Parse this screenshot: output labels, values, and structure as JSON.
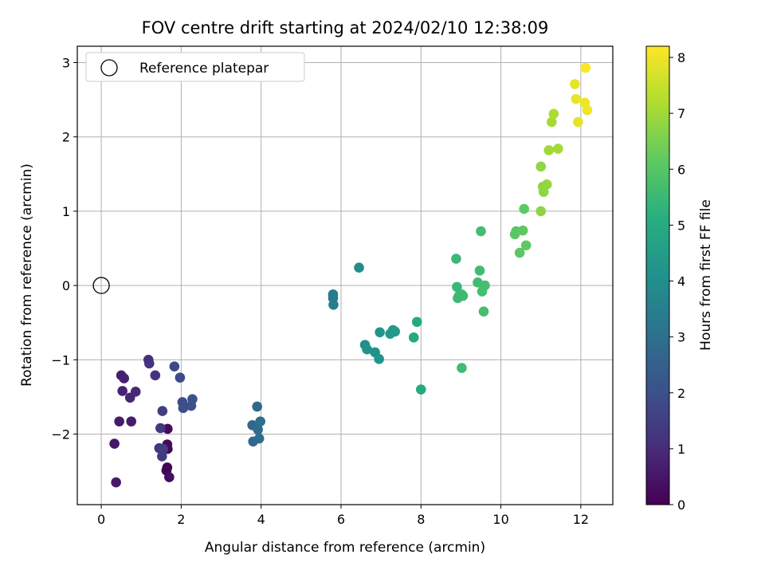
{
  "chart_data": {
    "type": "scatter",
    "title": "FOV centre drift starting at 2024/02/10 12:38:09",
    "xlabel": "Angular distance from reference (arcmin)",
    "ylabel": "Rotation from reference (arcmin)",
    "xlim": [
      -0.6,
      12.8
    ],
    "ylim": [
      -2.95,
      3.22
    ],
    "xticks": [
      0,
      2,
      4,
      6,
      8,
      10,
      12
    ],
    "yticks": [
      -2,
      -1,
      0,
      1,
      2,
      3
    ],
    "grid": true,
    "legend": {
      "placement": "top-left",
      "entries": [
        "Reference platepar"
      ]
    },
    "reference_point": {
      "x": 0,
      "y": 0
    },
    "colorbar": {
      "label": "Hours from first FF file",
      "range": [
        0,
        8.2
      ],
      "ticks": [
        0,
        1,
        2,
        3,
        4,
        5,
        6,
        7,
        8
      ],
      "colormap": "viridis"
    },
    "points": [
      {
        "x": 1.65,
        "y": -2.45,
        "c": 0.05
      },
      {
        "x": 1.63,
        "y": -2.49,
        "c": 0.1
      },
      {
        "x": 1.66,
        "y": -2.2,
        "c": 0.15
      },
      {
        "x": 1.65,
        "y": -2.14,
        "c": 0.2
      },
      {
        "x": 1.66,
        "y": -1.93,
        "c": 0.25
      },
      {
        "x": 1.7,
        "y": -2.58,
        "c": 0.3
      },
      {
        "x": 0.33,
        "y": -2.13,
        "c": 0.5
      },
      {
        "x": 0.37,
        "y": -2.65,
        "c": 0.55
      },
      {
        "x": 0.45,
        "y": -1.83,
        "c": 0.6
      },
      {
        "x": 0.75,
        "y": -1.83,
        "c": 0.65
      },
      {
        "x": 0.5,
        "y": -1.21,
        "c": 0.7
      },
      {
        "x": 0.57,
        "y": -1.25,
        "c": 0.75
      },
      {
        "x": 0.53,
        "y": -1.42,
        "c": 0.8
      },
      {
        "x": 0.72,
        "y": -1.51,
        "c": 0.85
      },
      {
        "x": 0.86,
        "y": -1.43,
        "c": 0.9
      },
      {
        "x": 1.18,
        "y": -1.0,
        "c": 1.1
      },
      {
        "x": 1.2,
        "y": -1.05,
        "c": 1.15
      },
      {
        "x": 1.35,
        "y": -1.21,
        "c": 1.2
      },
      {
        "x": 1.45,
        "y": -2.19,
        "c": 1.3
      },
      {
        "x": 1.48,
        "y": -1.92,
        "c": 1.35
      },
      {
        "x": 1.52,
        "y": -2.3,
        "c": 1.4
      },
      {
        "x": 1.55,
        "y": -2.2,
        "c": 1.45
      },
      {
        "x": 1.53,
        "y": -1.69,
        "c": 1.5
      },
      {
        "x": 1.83,
        "y": -1.09,
        "c": 1.8
      },
      {
        "x": 1.97,
        "y": -1.24,
        "c": 1.85
      },
      {
        "x": 2.03,
        "y": -1.57,
        "c": 1.95
      },
      {
        "x": 2.05,
        "y": -1.65,
        "c": 2.0
      },
      {
        "x": 2.25,
        "y": -1.62,
        "c": 2.05
      },
      {
        "x": 2.28,
        "y": -1.53,
        "c": 2.1
      },
      {
        "x": 3.78,
        "y": -1.88,
        "c": 2.7
      },
      {
        "x": 3.8,
        "y": -2.1,
        "c": 2.75
      },
      {
        "x": 3.9,
        "y": -1.63,
        "c": 2.8
      },
      {
        "x": 3.92,
        "y": -1.94,
        "c": 2.85
      },
      {
        "x": 3.95,
        "y": -2.06,
        "c": 2.9
      },
      {
        "x": 3.98,
        "y": -1.83,
        "c": 2.95
      },
      {
        "x": 5.8,
        "y": -0.12,
        "c": 3.4
      },
      {
        "x": 5.8,
        "y": -0.17,
        "c": 3.45
      },
      {
        "x": 5.81,
        "y": -0.26,
        "c": 3.5
      },
      {
        "x": 6.45,
        "y": 0.24,
        "c": 4.0
      },
      {
        "x": 6.6,
        "y": -0.8,
        "c": 4.05
      },
      {
        "x": 6.65,
        "y": -0.86,
        "c": 4.1
      },
      {
        "x": 6.85,
        "y": -0.9,
        "c": 4.15
      },
      {
        "x": 6.95,
        "y": -0.99,
        "c": 4.2
      },
      {
        "x": 6.97,
        "y": -0.63,
        "c": 4.25
      },
      {
        "x": 7.23,
        "y": -0.65,
        "c": 4.3
      },
      {
        "x": 7.3,
        "y": -0.6,
        "c": 4.35
      },
      {
        "x": 7.35,
        "y": -0.62,
        "c": 4.4
      },
      {
        "x": 7.82,
        "y": -0.7,
        "c": 4.9
      },
      {
        "x": 7.9,
        "y": -0.49,
        "c": 4.95
      },
      {
        "x": 8.0,
        "y": -1.4,
        "c": 5.0
      },
      {
        "x": 8.88,
        "y": 0.36,
        "c": 5.5
      },
      {
        "x": 8.9,
        "y": -0.02,
        "c": 5.45
      },
      {
        "x": 8.95,
        "y": -0.14,
        "c": 5.55
      },
      {
        "x": 8.92,
        "y": -0.17,
        "c": 5.5
      },
      {
        "x": 9.02,
        "y": -0.12,
        "c": 5.55
      },
      {
        "x": 9.05,
        "y": -0.14,
        "c": 5.55
      },
      {
        "x": 9.02,
        "y": -1.11,
        "c": 5.6
      },
      {
        "x": 9.42,
        "y": 0.04,
        "c": 5.6
      },
      {
        "x": 9.47,
        "y": 0.2,
        "c": 5.6
      },
      {
        "x": 9.5,
        "y": 0.73,
        "c": 5.65
      },
      {
        "x": 9.53,
        "y": -0.08,
        "c": 5.65
      },
      {
        "x": 9.57,
        "y": -0.35,
        "c": 5.7
      },
      {
        "x": 9.6,
        "y": 0.0,
        "c": 5.7
      },
      {
        "x": 10.35,
        "y": 0.69,
        "c": 6.05
      },
      {
        "x": 10.38,
        "y": 0.73,
        "c": 6.05
      },
      {
        "x": 10.47,
        "y": 0.44,
        "c": 6.1
      },
      {
        "x": 10.55,
        "y": 0.74,
        "c": 6.1
      },
      {
        "x": 10.58,
        "y": 1.03,
        "c": 6.15
      },
      {
        "x": 10.63,
        "y": 0.54,
        "c": 6.15
      },
      {
        "x": 11.0,
        "y": 1.0,
        "c": 6.75
      },
      {
        "x": 11.0,
        "y": 1.6,
        "c": 6.8
      },
      {
        "x": 11.05,
        "y": 1.33,
        "c": 6.8
      },
      {
        "x": 11.07,
        "y": 1.26,
        "c": 6.8
      },
      {
        "x": 11.15,
        "y": 1.36,
        "c": 6.85
      },
      {
        "x": 11.2,
        "y": 1.82,
        "c": 7.0
      },
      {
        "x": 11.43,
        "y": 1.84,
        "c": 7.05
      },
      {
        "x": 11.27,
        "y": 2.2,
        "c": 7.1
      },
      {
        "x": 11.32,
        "y": 2.31,
        "c": 7.15
      },
      {
        "x": 11.85,
        "y": 2.71,
        "c": 7.9
      },
      {
        "x": 11.88,
        "y": 2.51,
        "c": 7.95
      },
      {
        "x": 11.93,
        "y": 2.2,
        "c": 7.9
      },
      {
        "x": 12.1,
        "y": 2.46,
        "c": 8.0
      },
      {
        "x": 12.12,
        "y": 2.93,
        "c": 8.15
      },
      {
        "x": 12.16,
        "y": 2.36,
        "c": 8.05
      }
    ]
  }
}
